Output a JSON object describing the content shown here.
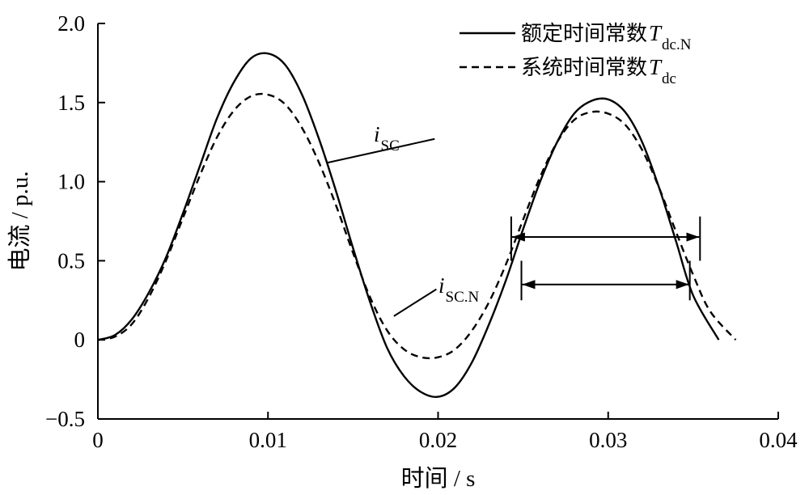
{
  "chart_data": {
    "type": "line",
    "xlabel": "时间 / s",
    "ylabel": "电流 / p.u.",
    "xlim": [
      0,
      0.04
    ],
    "ylim": [
      -0.5,
      2.0
    ],
    "xticks": [
      {
        "value": 0,
        "label": "0"
      },
      {
        "value": 0.01,
        "label": "0.01"
      },
      {
        "value": 0.02,
        "label": "0.02"
      },
      {
        "value": 0.03,
        "label": "0.03"
      },
      {
        "value": 0.04,
        "label": "0.04"
      }
    ],
    "yticks": [
      {
        "value": -0.5,
        "label": "−0.5"
      },
      {
        "value": 0,
        "label": "0"
      },
      {
        "value": 0.5,
        "label": "0.5"
      },
      {
        "value": 1.0,
        "label": "1.0"
      },
      {
        "value": 1.5,
        "label": "1.5"
      },
      {
        "value": 2.0,
        "label": "2.0"
      }
    ],
    "grid": false,
    "legend_position": "top-right",
    "series": [
      {
        "id": "solid",
        "name": "额定时间常数T_dc.N",
        "legend_text": "额定时间常数",
        "legend_symbol": "T",
        "legend_subscript": "dc.N",
        "style": "solid",
        "x": [
          0,
          0.001,
          0.002,
          0.003,
          0.004,
          0.005,
          0.006,
          0.007,
          0.008,
          0.009,
          0.01,
          0.011,
          0.012,
          0.013,
          0.014,
          0.015,
          0.016,
          0.017,
          0.018,
          0.019,
          0.02,
          0.021,
          0.022,
          0.023,
          0.024,
          0.025,
          0.026,
          0.027,
          0.028,
          0.029,
          0.03,
          0.031,
          0.032,
          0.033,
          0.034,
          0.035,
          0.0365
        ],
        "y": [
          0,
          0.03,
          0.13,
          0.3,
          0.52,
          0.8,
          1.1,
          1.4,
          1.63,
          1.78,
          1.81,
          1.74,
          1.55,
          1.27,
          0.94,
          0.58,
          0.24,
          -0.05,
          -0.23,
          -0.33,
          -0.36,
          -0.3,
          -0.14,
          0.1,
          0.38,
          0.7,
          1.0,
          1.25,
          1.43,
          1.51,
          1.52,
          1.44,
          1.25,
          0.96,
          0.62,
          0.28,
          0.0
        ]
      },
      {
        "id": "dashed",
        "name": "系统时间常数T_dc",
        "legend_text": "系统时间常数",
        "legend_symbol": "T",
        "legend_subscript": "dc",
        "style": "dashed",
        "x": [
          0,
          0.001,
          0.002,
          0.003,
          0.004,
          0.005,
          0.006,
          0.007,
          0.008,
          0.009,
          0.01,
          0.011,
          0.012,
          0.013,
          0.014,
          0.015,
          0.016,
          0.017,
          0.018,
          0.019,
          0.02,
          0.021,
          0.022,
          0.023,
          0.024,
          0.025,
          0.026,
          0.027,
          0.028,
          0.029,
          0.03,
          0.031,
          0.032,
          0.033,
          0.034,
          0.035,
          0.036,
          0.0375
        ],
        "y": [
          0,
          0.02,
          0.1,
          0.27,
          0.5,
          0.77,
          1.04,
          1.28,
          1.45,
          1.54,
          1.55,
          1.49,
          1.34,
          1.12,
          0.85,
          0.55,
          0.27,
          0.06,
          -0.06,
          -0.11,
          -0.11,
          -0.06,
          0.06,
          0.24,
          0.48,
          0.76,
          1.03,
          1.25,
          1.39,
          1.44,
          1.43,
          1.36,
          1.2,
          0.96,
          0.68,
          0.41,
          0.18,
          0.0
        ]
      }
    ],
    "annotations": [
      {
        "id": "label-isc",
        "symbol": "i",
        "subscript": "SC",
        "target_series": "solid"
      },
      {
        "id": "label-iscn",
        "symbol": "i",
        "subscript": "SC.N",
        "target_series": "dashed"
      }
    ],
    "measurements": [
      {
        "id": "dashed-halfwave",
        "x_start": 0.0243,
        "x_end": 0.0354,
        "y": 0.65,
        "bar_top": 0.78,
        "bar_bottom": 0.5
      },
      {
        "id": "solid-halfwave",
        "x_start": 0.0249,
        "x_end": 0.0348,
        "y": 0.35,
        "bar_top": 0.5,
        "bar_bottom": 0.25
      }
    ]
  }
}
